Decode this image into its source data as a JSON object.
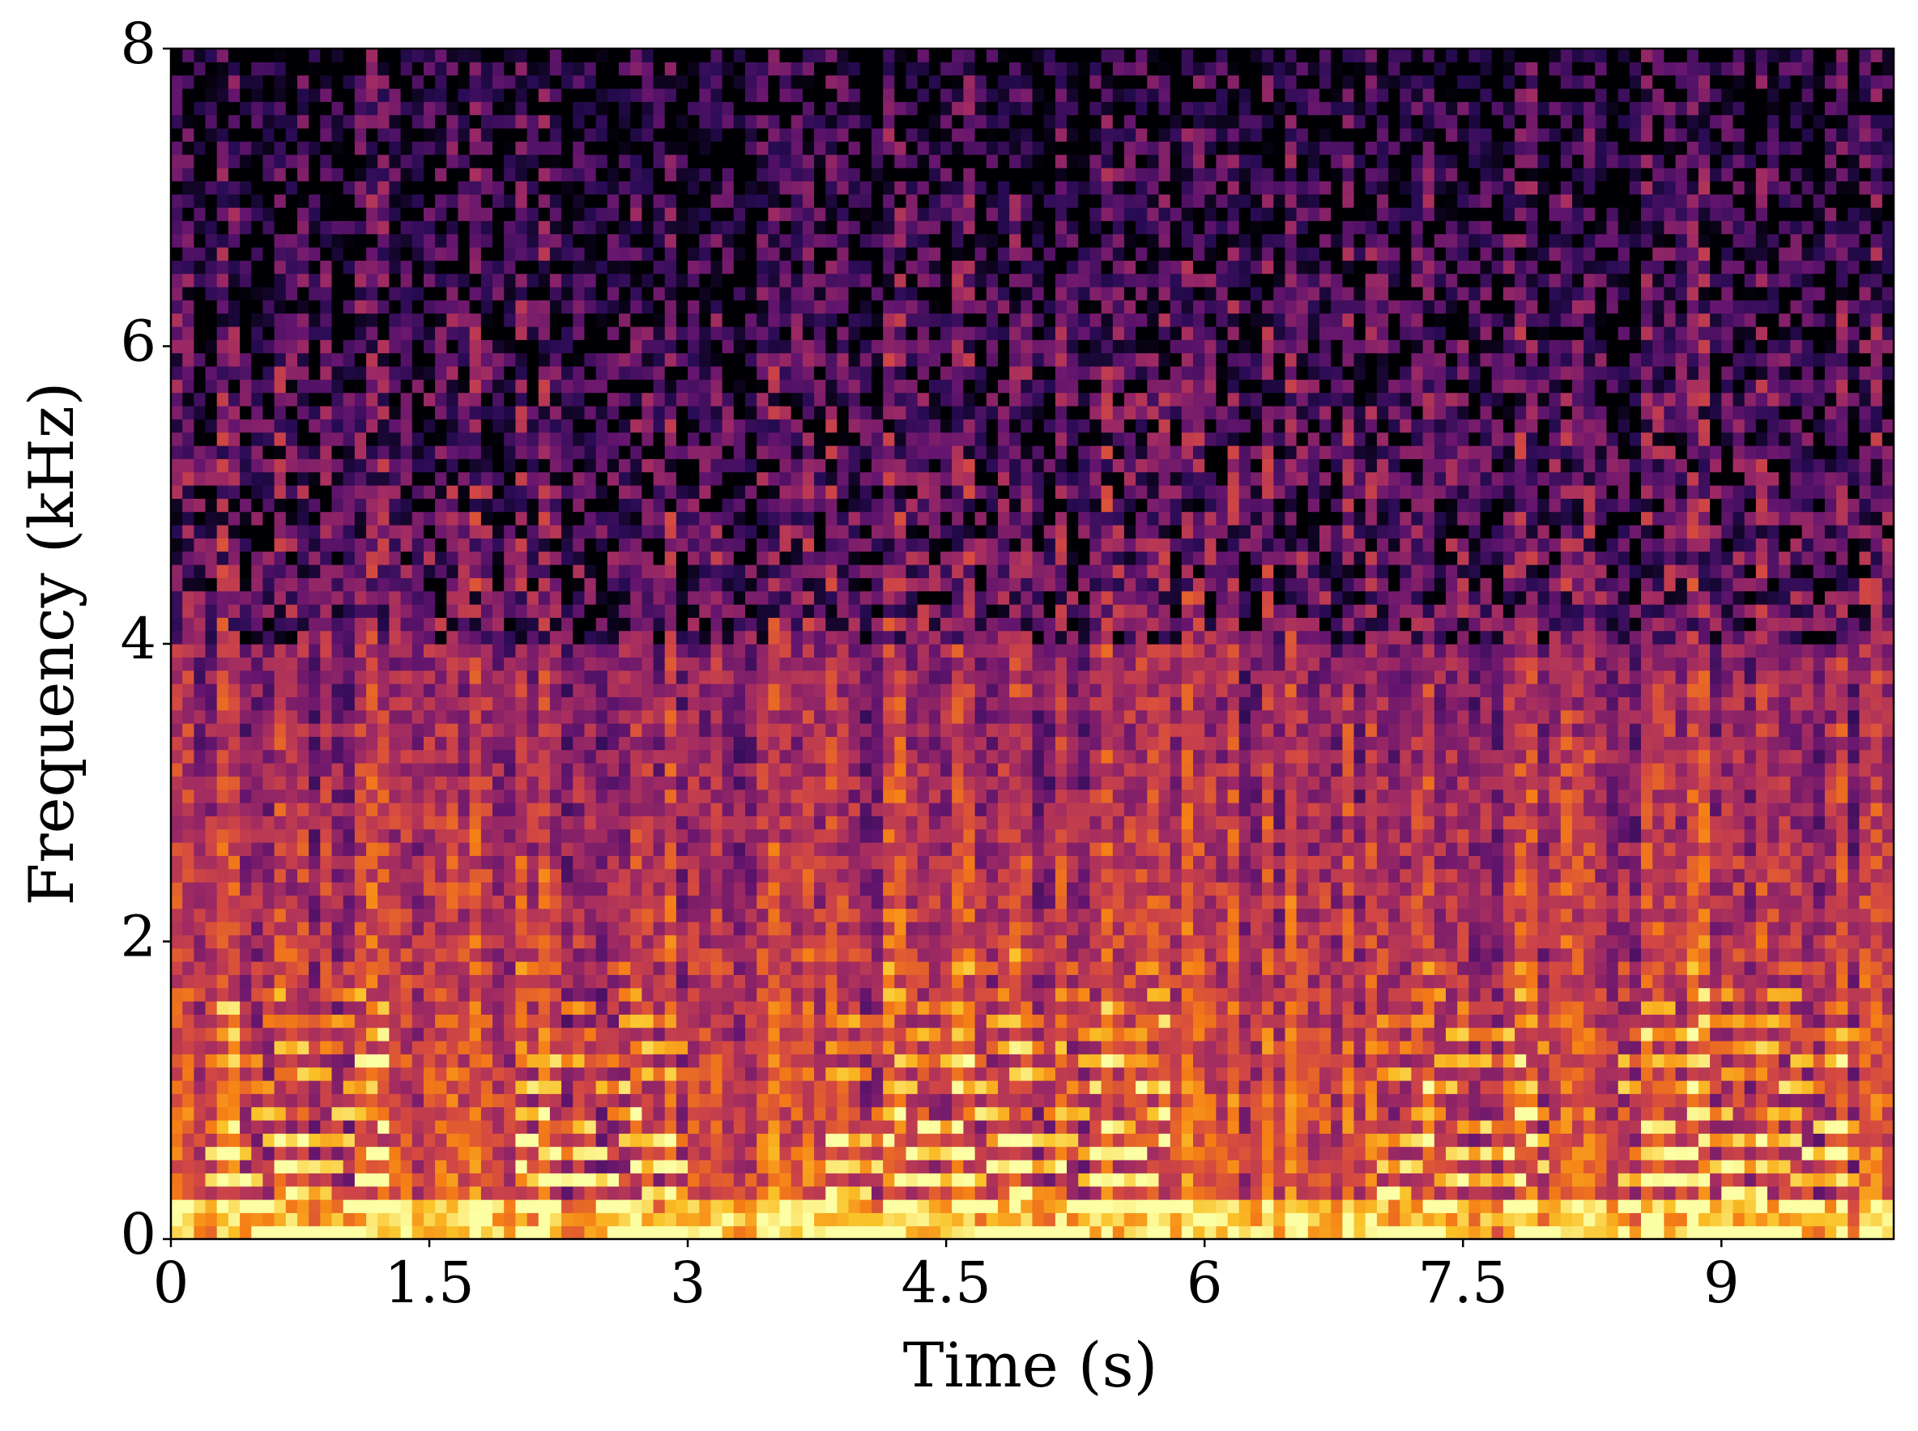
{
  "chart_data": {
    "type": "spectrogram",
    "xlabel": "Time (s)",
    "ylabel": "Frequency (kHz)",
    "xlim": [
      0,
      10
    ],
    "ylim": [
      0,
      8
    ],
    "xticks": [
      0,
      1.5,
      3,
      4.5,
      6,
      7.5,
      9
    ],
    "yticks": [
      0,
      2,
      4,
      6,
      8
    ],
    "colormap": "inferno"
  }
}
